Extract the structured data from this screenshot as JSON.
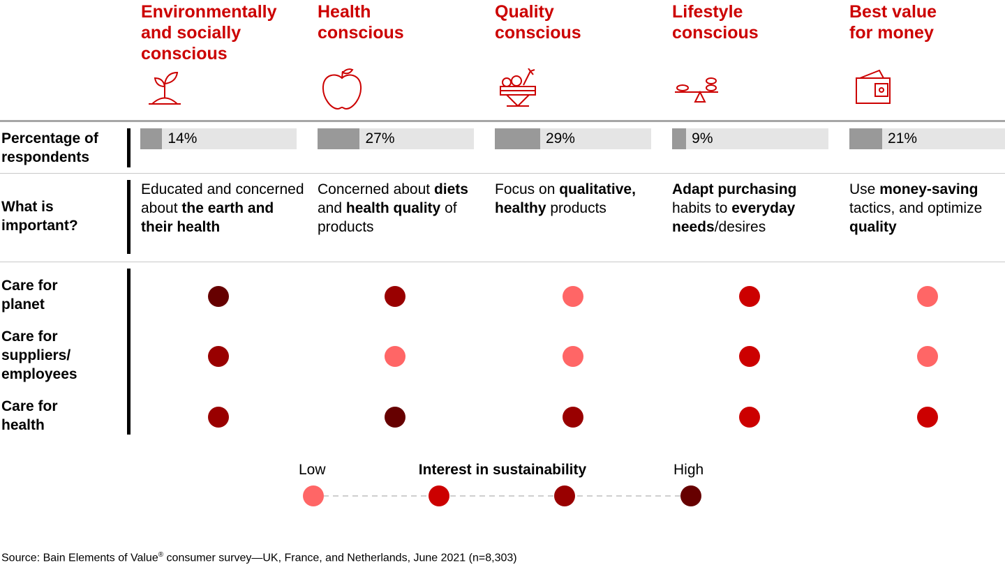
{
  "colors": {
    "accent": "#cc0000",
    "low": "#ff6666",
    "mid_low": "#cc0000",
    "mid_high": "#990000",
    "high": "#660000",
    "bar_fill": "#999999",
    "bar_track": "#e5e5e5"
  },
  "row_labels": {
    "percentage": "Percentage of respondents",
    "important": "What is important?",
    "planet": "Care for planet",
    "suppliers": "Care for suppliers/ employees",
    "health": "Care for health"
  },
  "chart_data": {
    "type": "table",
    "segments": [
      {
        "name": "Environmentally and socially conscious",
        "icon": "plant-icon",
        "percentage": 14,
        "percentage_label": "14%",
        "important": [
          {
            "t": "Educated and concerned about ",
            "b": false
          },
          {
            "t": "the earth and their health",
            "b": true
          }
        ],
        "care_for_planet": 4,
        "care_for_suppliers": 3,
        "care_for_health": 3
      },
      {
        "name": "Health conscious",
        "icon": "apple-icon",
        "percentage": 27,
        "percentage_label": "27%",
        "important": [
          {
            "t": "Concerned about ",
            "b": false
          },
          {
            "t": "diets",
            "b": true
          },
          {
            "t": " and ",
            "b": false
          },
          {
            "t": "health quality",
            "b": true
          },
          {
            "t": " of products",
            "b": false
          }
        ],
        "care_for_planet": 3,
        "care_for_suppliers": 1,
        "care_for_health": 4
      },
      {
        "name": "Quality conscious",
        "icon": "produce-crate-icon",
        "percentage": 29,
        "percentage_label": "29%",
        "important": [
          {
            "t": "Focus on ",
            "b": false
          },
          {
            "t": "qualitative, healthy",
            "b": true
          },
          {
            "t": " products",
            "b": false
          }
        ],
        "care_for_planet": 1,
        "care_for_suppliers": 1,
        "care_for_health": 3
      },
      {
        "name": "Lifestyle conscious",
        "icon": "balance-scale-icon",
        "percentage": 9,
        "percentage_label": "9%",
        "important": [
          {
            "t": "Adapt purchasing",
            "b": true
          },
          {
            "t": " habits to ",
            "b": false
          },
          {
            "t": "everyday needs",
            "b": true
          },
          {
            "t": "/desires",
            "b": false
          }
        ],
        "care_for_planet": 2,
        "care_for_suppliers": 2,
        "care_for_health": 2
      },
      {
        "name": "Best value for money",
        "icon": "wallet-icon",
        "percentage": 21,
        "percentage_label": "21%",
        "important": [
          {
            "t": "Use ",
            "b": false
          },
          {
            "t": "money-saving",
            "b": true
          },
          {
            "t": " tactics, and optimize ",
            "b": false
          },
          {
            "t": "quality",
            "b": true
          }
        ],
        "care_for_planet": 1,
        "care_for_suppliers": 1,
        "care_for_health": 2
      }
    ],
    "scale": {
      "title": "Interest in sustainability",
      "low_label": "Low",
      "high_label": "High",
      "levels": [
        1,
        2,
        3,
        4
      ]
    }
  },
  "source_prefix": "Source: Bain Elements of Value",
  "source_mark": "®",
  "source_suffix": " consumer survey—UK, France, and Netherlands, June 2021 (n=8,303)"
}
